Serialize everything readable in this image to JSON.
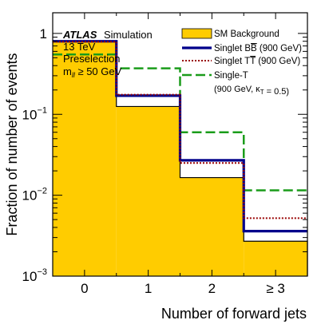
{
  "header": {
    "experiment": "ATLAS",
    "experiment_suffix": "Simulation",
    "energy": "13 TeV",
    "selection": "Preselection",
    "cut_prefix": "m",
    "cut_sub": "ll",
    "cut_suffix": " ≥ 50 GeV"
  },
  "chart_data": {
    "type": "bar",
    "xlabel": "Number of forward jets",
    "ylabel": "Fraction of number of events",
    "categories": [
      "0",
      "1",
      "2",
      "≥ 3"
    ],
    "y_scale": "log",
    "ylim": [
      0.001,
      1.8
    ],
    "y_ticks": [
      {
        "value": 0.001,
        "base": "10",
        "exp": "−3"
      },
      {
        "value": 0.01,
        "base": "10",
        "exp": "−2"
      },
      {
        "value": 0.1,
        "base": "10",
        "exp": "−1"
      },
      {
        "value": 1,
        "base": "1",
        "exp": ""
      }
    ],
    "grid": false,
    "legend_position": "top-right",
    "series": [
      {
        "key": "bkg",
        "style": "filled",
        "color": "#ffcc00",
        "legend_parts": [
          {
            "t": "SM Background"
          }
        ],
        "values": [
          0.8,
          0.125,
          0.0165,
          0.0027
        ]
      },
      {
        "key": "bb",
        "style": "solid",
        "color": "#00008b",
        "legend_parts": [
          {
            "t": "Singlet B"
          },
          {
            "t": "B",
            "over": true
          },
          {
            "t": " (900 GeV)"
          }
        ],
        "values": [
          0.8,
          0.17,
          0.027,
          0.0036
        ]
      },
      {
        "key": "tt",
        "style": "dotted",
        "color": "#990000",
        "legend_parts": [
          {
            "t": "Singlet T"
          },
          {
            "t": "T",
            "over": true
          },
          {
            "t": " (900 GeV)"
          }
        ],
        "values": [
          0.79,
          0.175,
          0.025,
          0.0052
        ]
      },
      {
        "key": "singlet",
        "style": "dashed",
        "color": "#1a9c1a",
        "legend_parts": [
          {
            "t": "Single-T"
          }
        ],
        "legend_line2": [
          {
            "t": "(900 GeV, κ"
          },
          {
            "t": "T",
            "sub": true
          },
          {
            "t": " = 0.5)"
          }
        ],
        "values": [
          0.55,
          0.37,
          0.06,
          0.0115
        ]
      }
    ]
  }
}
